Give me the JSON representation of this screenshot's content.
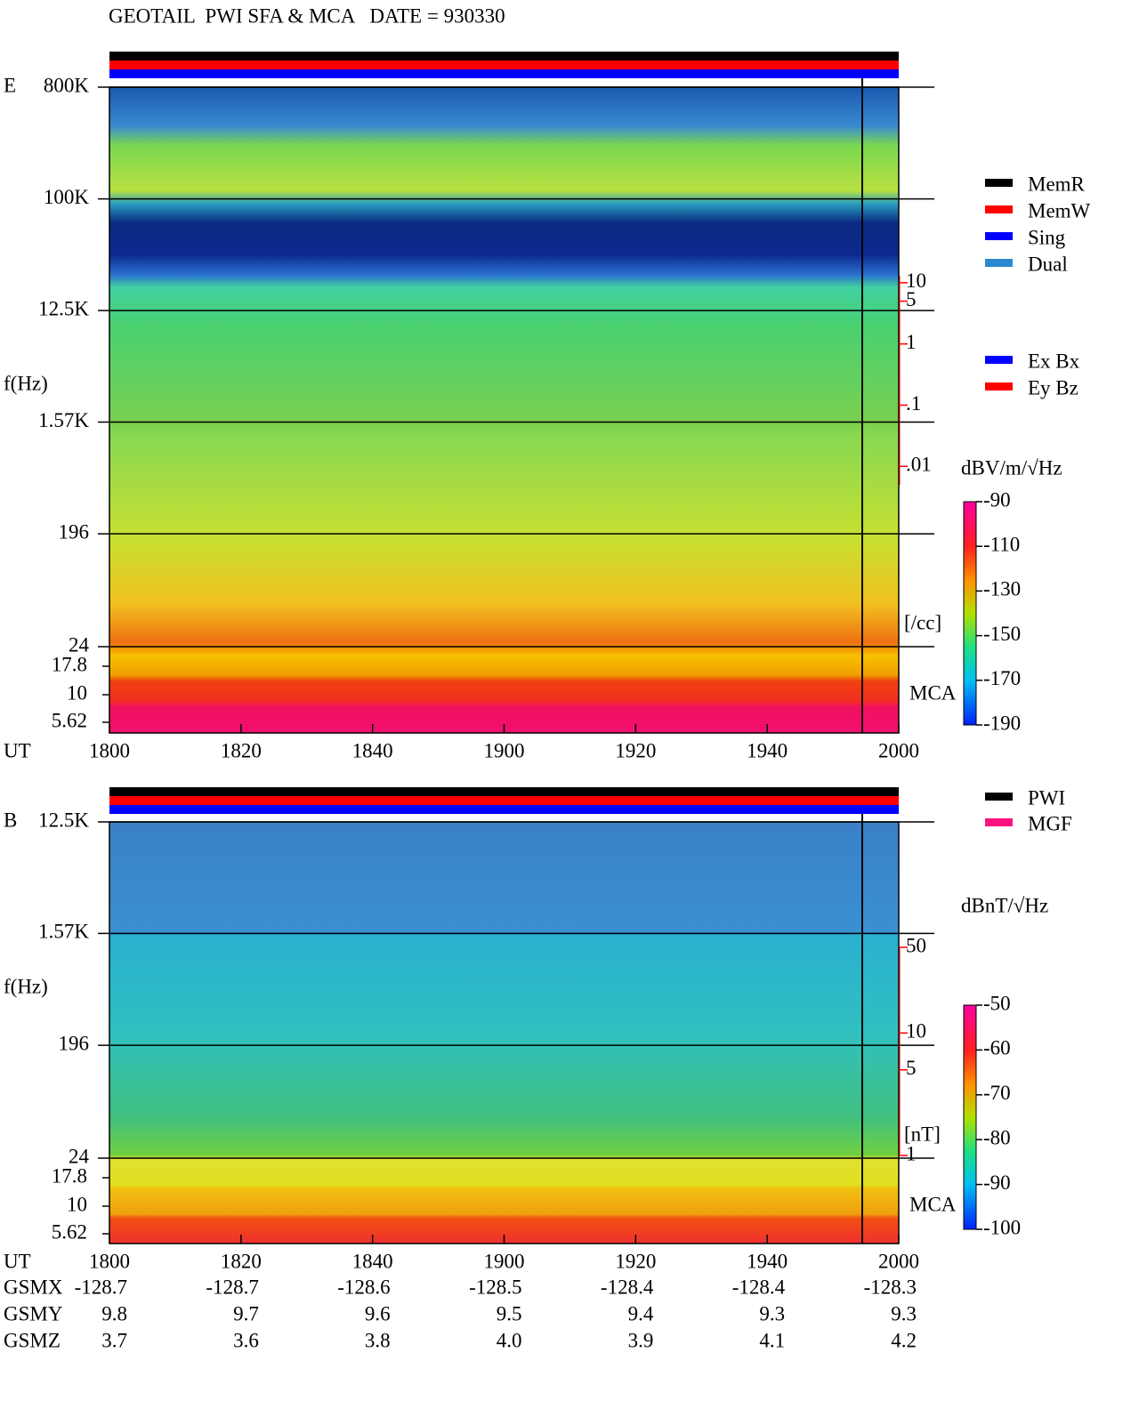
{
  "header": {
    "title": "GEOTAIL  PWI SFA & MCA   DATE = 930330"
  },
  "chart_data": [
    {
      "type": "spectrogram",
      "panel_label": "E",
      "y_label": "f(Hz)",
      "x_label": "UT",
      "log_y": true,
      "ylim": [
        24,
        800000
      ],
      "yticks": [
        {
          "value": 800000,
          "label": "800K"
        },
        {
          "value": 100000,
          "label": "100K"
        },
        {
          "value": 12500,
          "label": "12.5K"
        },
        {
          "value": 1570,
          "label": "1.57K"
        },
        196,
        24
      ],
      "mca_label": "MCA",
      "mca_ticks": [
        17.8,
        10,
        5.62
      ],
      "y2_label": "[/cc]",
      "y2_color": "#ff0000",
      "y2lim": [
        0.005,
        13
      ],
      "y2ticks": [
        10,
        5,
        1,
        {
          "value": 0.1,
          "label": ".1"
        },
        {
          "value": 0.01,
          "label": ".01"
        }
      ],
      "x": [
        "1800",
        "1820",
        "1840",
        "1900",
        "1920",
        "1940",
        "2000"
      ],
      "colorbar": {
        "label": "dBV/m/√Hz",
        "lim": [
          -190,
          -90
        ],
        "ticks": [
          -90,
          -110,
          -130,
          -150,
          -170,
          -190
        ]
      },
      "legend": [
        {
          "name": "MemR",
          "color": "#000000"
        },
        {
          "name": "MemW",
          "color": "#ff0000"
        },
        {
          "name": "Sing",
          "color": "#0000ff"
        },
        {
          "name": "Dual",
          "color": "#2a8ad0"
        }
      ],
      "legend2": [
        {
          "name": "Ex Bx",
          "color": "#0000ff"
        },
        {
          "name": "Ey Bz",
          "color": "#ff0000"
        }
      ]
    },
    {
      "type": "spectrogram",
      "panel_label": "B",
      "y_label": "f(Hz)",
      "x_label": "UT",
      "log_y": true,
      "ylim": [
        24,
        12500
      ],
      "yticks": [
        {
          "value": 12500,
          "label": "12.5K"
        },
        {
          "value": 1570,
          "label": "1.57K"
        },
        196,
        24
      ],
      "mca_label": "MCA",
      "mca_ticks": [
        17.8,
        10,
        5.62
      ],
      "y2_label": "[nT]",
      "y2_color": "#ff0000",
      "y2lim": [
        1,
        50
      ],
      "y2ticks": [
        50,
        10,
        5,
        1
      ],
      "x": [
        "1800",
        "1820",
        "1840",
        "1900",
        "1920",
        "1940",
        "2000"
      ],
      "colorbar": {
        "label": "dBnT/√Hz",
        "lim": [
          -100,
          -50
        ],
        "ticks": [
          -50,
          -60,
          -70,
          -80,
          -90,
          -100
        ]
      },
      "legend": [
        {
          "name": "PWI",
          "color": "#000000"
        },
        {
          "name": "MGF",
          "color": "#ff1080"
        }
      ]
    }
  ],
  "orbit": {
    "rows": [
      {
        "name": "GSMX",
        "values": [
          "-128.7",
          "-128.7",
          "-128.6",
          "-128.5",
          "-128.4",
          "-128.4",
          "-128.3"
        ]
      },
      {
        "name": "GSMY",
        "values": [
          "9.8",
          "9.7",
          "9.6",
          "9.5",
          "9.4",
          "9.3",
          "9.3"
        ]
      },
      {
        "name": "GSMZ",
        "values": [
          "3.7",
          "3.6",
          "3.8",
          "4.0",
          "3.9",
          "4.1",
          "4.2"
        ]
      }
    ]
  }
}
